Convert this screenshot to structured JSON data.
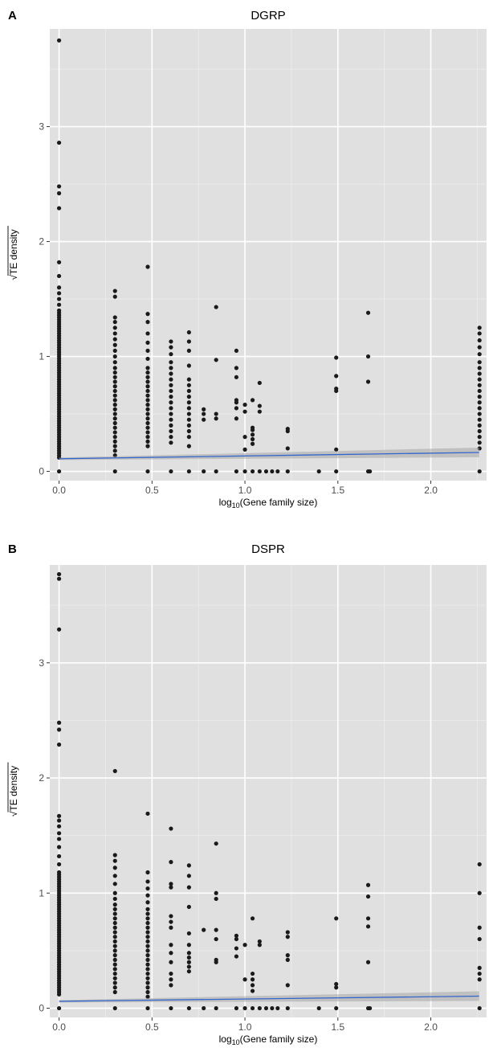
{
  "chart_data": [
    {
      "type": "scatter",
      "panel_label": "A",
      "title": "DGRP",
      "xlabel_main": "log",
      "xlabel_sub": "10",
      "xlabel_tail": "(Gene family size)",
      "ylabel": "TE density",
      "ylabel_radical": "√",
      "xlim": [
        -0.05,
        2.3
      ],
      "ylim": [
        -0.08,
        3.85
      ],
      "x_ticks": [
        0.0,
        0.5,
        1.0,
        1.5,
        2.0
      ],
      "x_tick_labels": [
        "0.0",
        "0.5",
        "1.0",
        "1.5",
        "2.0"
      ],
      "y_ticks": [
        0,
        1,
        2,
        3
      ],
      "y_tick_labels": [
        "0",
        "1",
        "2",
        "3"
      ],
      "grid": true,
      "point_color": "#1a1a1a",
      "trend": {
        "x": [
          0.0,
          2.26
        ],
        "y": [
          0.11,
          0.165
        ],
        "color": "#3366cc",
        "band_color": "#a6a6a6"
      },
      "columns": [
        {
          "x": 0.0,
          "y": [
            0,
            0.12,
            0.14,
            0.16,
            0.18,
            0.2,
            0.22,
            0.24,
            0.26,
            0.28,
            0.3,
            0.32,
            0.34,
            0.36,
            0.38,
            0.4,
            0.42,
            0.44,
            0.46,
            0.48,
            0.5,
            0.52,
            0.54,
            0.56,
            0.58,
            0.6,
            0.62,
            0.64,
            0.66,
            0.68,
            0.7,
            0.72,
            0.74,
            0.76,
            0.78,
            0.8,
            0.82,
            0.84,
            0.86,
            0.88,
            0.9,
            0.92,
            0.94,
            0.96,
            0.98,
            1.0,
            1.02,
            1.04,
            1.06,
            1.08,
            1.1,
            1.12,
            1.14,
            1.16,
            1.18,
            1.2,
            1.22,
            1.24,
            1.26,
            1.28,
            1.3,
            1.32,
            1.34,
            1.36,
            1.38,
            1.4,
            1.45,
            1.5,
            1.55,
            1.6,
            1.7,
            1.82,
            2.29,
            2.42,
            2.48,
            2.86,
            3.75
          ]
        },
        {
          "x": 0.301,
          "y": [
            0,
            0.14,
            0.18,
            0.22,
            0.26,
            0.3,
            0.34,
            0.38,
            0.42,
            0.46,
            0.5,
            0.54,
            0.58,
            0.62,
            0.66,
            0.7,
            0.74,
            0.78,
            0.82,
            0.86,
            0.9,
            0.95,
            1.0,
            1.05,
            1.1,
            1.15,
            1.2,
            1.25,
            1.3,
            1.34,
            1.52,
            1.57
          ]
        },
        {
          "x": 0.477,
          "y": [
            0,
            0.22,
            0.26,
            0.3,
            0.34,
            0.38,
            0.42,
            0.46,
            0.5,
            0.54,
            0.58,
            0.62,
            0.66,
            0.7,
            0.74,
            0.78,
            0.82,
            0.86,
            0.9,
            0.98,
            1.05,
            1.12,
            1.2,
            1.3,
            1.37,
            1.78
          ]
        },
        {
          "x": 0.602,
          "y": [
            0,
            0.25,
            0.3,
            0.35,
            0.4,
            0.45,
            0.5,
            0.55,
            0.6,
            0.65,
            0.7,
            0.75,
            0.8,
            0.85,
            0.9,
            0.95,
            1.02,
            1.08,
            1.13
          ]
        },
        {
          "x": 0.699,
          "y": [
            0,
            0.22,
            0.3,
            0.35,
            0.4,
            0.45,
            0.5,
            0.55,
            0.6,
            0.65,
            0.7,
            0.75,
            0.8,
            0.92,
            1.05,
            1.13,
            1.21
          ]
        },
        {
          "x": 0.778,
          "y": [
            0,
            0.45,
            0.5,
            0.54
          ]
        },
        {
          "x": 0.845,
          "y": [
            0,
            0.46,
            0.5,
            0.97,
            1.43
          ]
        },
        {
          "x": 0.954,
          "y": [
            0,
            0.46,
            0.55,
            0.6,
            0.62,
            0.82,
            0.9,
            1.05
          ]
        },
        {
          "x": 1.0,
          "y": [
            0,
            0.19,
            0.3,
            0.52,
            0.58
          ]
        },
        {
          "x": 1.041,
          "y": [
            0,
            0.24,
            0.28,
            0.32,
            0.36,
            0.38,
            0.62
          ]
        },
        {
          "x": 1.079,
          "y": [
            0,
            0.52,
            0.57,
            0.77
          ]
        },
        {
          "x": 1.114,
          "y": [
            0
          ]
        },
        {
          "x": 1.146,
          "y": [
            0
          ]
        },
        {
          "x": 1.176,
          "y": [
            0
          ]
        },
        {
          "x": 1.23,
          "y": [
            0,
            0.2,
            0.35,
            0.37
          ]
        },
        {
          "x": 1.398,
          "y": [
            0
          ]
        },
        {
          "x": 1.491,
          "y": [
            0,
            0.19,
            0.7,
            0.72,
            0.83,
            0.99
          ]
        },
        {
          "x": 1.663,
          "y": [
            0,
            0.78,
            1.0,
            1.38
          ]
        },
        {
          "x": 1.672,
          "y": [
            0
          ]
        },
        {
          "x": 2.262,
          "y": [
            0,
            0.2,
            0.25,
            0.3,
            0.35,
            0.4,
            0.45,
            0.5,
            0.55,
            0.6,
            0.65,
            0.7,
            0.75,
            0.8,
            0.85,
            0.9,
            0.95,
            1.02,
            1.08,
            1.14,
            1.2,
            1.25
          ]
        }
      ]
    },
    {
      "type": "scatter",
      "panel_label": "B",
      "title": "DSPR",
      "xlabel_main": "log",
      "xlabel_sub": "10",
      "xlabel_tail": "(Gene family size)",
      "ylabel": "TE density",
      "ylabel_radical": "√",
      "xlim": [
        -0.05,
        2.3
      ],
      "ylim": [
        -0.08,
        3.85
      ],
      "x_ticks": [
        0.0,
        0.5,
        1.0,
        1.5,
        2.0
      ],
      "x_tick_labels": [
        "0.0",
        "0.5",
        "1.0",
        "1.5",
        "2.0"
      ],
      "y_ticks": [
        0,
        1,
        2,
        3
      ],
      "y_tick_labels": [
        "0",
        "1",
        "2",
        "3"
      ],
      "grid": true,
      "point_color": "#1a1a1a",
      "trend": {
        "x": [
          0.0,
          2.26
        ],
        "y": [
          0.06,
          0.105
        ],
        "color": "#3366cc",
        "band_color": "#a6a6a6"
      },
      "columns": [
        {
          "x": 0.0,
          "y": [
            0,
            0.12,
            0.14,
            0.16,
            0.18,
            0.2,
            0.22,
            0.24,
            0.26,
            0.28,
            0.3,
            0.32,
            0.34,
            0.36,
            0.38,
            0.4,
            0.42,
            0.44,
            0.46,
            0.48,
            0.5,
            0.52,
            0.54,
            0.56,
            0.58,
            0.6,
            0.62,
            0.64,
            0.66,
            0.68,
            0.7,
            0.72,
            0.74,
            0.76,
            0.78,
            0.8,
            0.82,
            0.84,
            0.86,
            0.88,
            0.9,
            0.92,
            0.94,
            0.96,
            0.98,
            1.0,
            1.02,
            1.04,
            1.06,
            1.08,
            1.1,
            1.12,
            1.14,
            1.16,
            1.18,
            1.25,
            1.32,
            1.4,
            1.47,
            1.52,
            1.58,
            1.63,
            1.67,
            2.29,
            2.42,
            2.48,
            3.29,
            3.73,
            3.77
          ]
        },
        {
          "x": 0.301,
          "y": [
            0,
            0.14,
            0.18,
            0.22,
            0.26,
            0.3,
            0.34,
            0.38,
            0.42,
            0.46,
            0.5,
            0.54,
            0.58,
            0.62,
            0.66,
            0.7,
            0.74,
            0.78,
            0.82,
            0.86,
            0.9,
            0.95,
            1.0,
            1.08,
            1.15,
            1.22,
            1.28,
            1.33,
            2.06
          ]
        },
        {
          "x": 0.477,
          "y": [
            0,
            0.1,
            0.14,
            0.18,
            0.22,
            0.26,
            0.3,
            0.34,
            0.38,
            0.42,
            0.46,
            0.5,
            0.54,
            0.58,
            0.62,
            0.66,
            0.7,
            0.74,
            0.78,
            0.82,
            0.86,
            0.92,
            0.98,
            1.04,
            1.1,
            1.18,
            1.69
          ]
        },
        {
          "x": 0.602,
          "y": [
            0,
            0.2,
            0.25,
            0.3,
            0.4,
            0.48,
            0.55,
            0.7,
            0.75,
            0.8,
            1.05,
            1.08,
            1.27,
            1.56
          ]
        },
        {
          "x": 0.699,
          "y": [
            0,
            0.32,
            0.36,
            0.4,
            0.44,
            0.48,
            0.55,
            0.65,
            0.88,
            1.05,
            1.15,
            1.24
          ]
        },
        {
          "x": 0.778,
          "y": [
            0,
            0.68
          ]
        },
        {
          "x": 0.845,
          "y": [
            0,
            0.4,
            0.42,
            0.6,
            0.68,
            0.95,
            1.0,
            1.43
          ]
        },
        {
          "x": 0.954,
          "y": [
            0,
            0.45,
            0.52,
            0.6,
            0.63
          ]
        },
        {
          "x": 1.0,
          "y": [
            0,
            0.25,
            0.55
          ]
        },
        {
          "x": 1.041,
          "y": [
            0,
            0.15,
            0.2,
            0.25,
            0.3,
            0.78
          ]
        },
        {
          "x": 1.079,
          "y": [
            0,
            0.55,
            0.58
          ]
        },
        {
          "x": 1.114,
          "y": [
            0
          ]
        },
        {
          "x": 1.146,
          "y": [
            0
          ]
        },
        {
          "x": 1.176,
          "y": [
            0
          ]
        },
        {
          "x": 1.23,
          "y": [
            0,
            0.2,
            0.42,
            0.46,
            0.62,
            0.66
          ]
        },
        {
          "x": 1.398,
          "y": [
            0
          ]
        },
        {
          "x": 1.491,
          "y": [
            0,
            0.18,
            0.21,
            0.78
          ]
        },
        {
          "x": 1.663,
          "y": [
            0,
            0.4,
            0.71,
            0.78,
            0.97,
            1.07
          ]
        },
        {
          "x": 1.672,
          "y": [
            0
          ]
        },
        {
          "x": 2.262,
          "y": [
            0,
            0.25,
            0.3,
            0.35,
            0.6,
            0.7,
            1.0,
            1.25
          ]
        }
      ]
    }
  ]
}
